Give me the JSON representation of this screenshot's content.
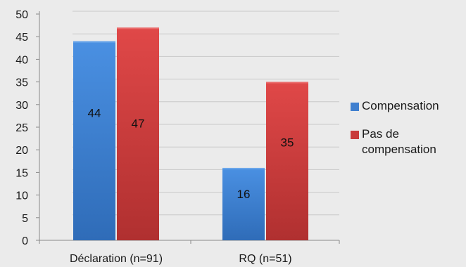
{
  "chart_data": {
    "type": "bar",
    "title": "",
    "xlabel": "",
    "ylabel": "",
    "categories": [
      "Déclaration (n=91)",
      "RQ (n=51)"
    ],
    "series": [
      {
        "name": "Compensation",
        "values": [
          44,
          16
        ],
        "color": "#3f7fcf"
      },
      {
        "name": "Pas de compensation",
        "values": [
          47,
          35
        ],
        "color": "#c83a3a"
      }
    ],
    "ylim": [
      0,
      50
    ],
    "yticks": [
      "0",
      "5",
      "10",
      "15",
      "20",
      "25",
      "30",
      "35",
      "40",
      "45",
      "50"
    ],
    "data_labels": [
      [
        "44",
        "16"
      ],
      [
        "47",
        "35"
      ]
    ],
    "grid": true,
    "legend_position": "right",
    "style": "3d-shaded-bars"
  }
}
